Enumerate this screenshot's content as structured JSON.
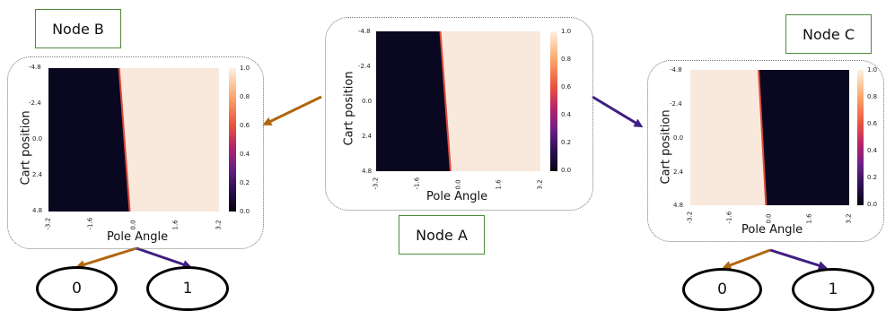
{
  "colors": {
    "dark": "#0a0820",
    "light": "#f8e9dc",
    "arrow_left": "#b0660f",
    "arrow_right": "#3f1f80",
    "box_border": "#4f8a3a"
  },
  "nodes": {
    "node_a": {
      "label": "Node A"
    },
    "node_b": {
      "label": "Node B"
    },
    "node_c": {
      "label": "Node C"
    }
  },
  "leaves": {
    "b_left": "0",
    "b_right": "1",
    "c_left": "0",
    "c_right": "1"
  },
  "chart_data": [
    {
      "type": "heatmap",
      "panel": "Node A",
      "xlabel": "Pole Angle",
      "ylabel": "Cart position",
      "x_ticks": [
        "-3.2",
        "-1.6",
        "0.0",
        "1.6",
        "3.2"
      ],
      "y_ticks": [
        "-4.8",
        "-2.4",
        "0.0",
        "2.4",
        "4.8"
      ],
      "colorbar_ticks": [
        "1.0",
        "0.8",
        "0.6",
        "0.4",
        "0.2",
        "0.0"
      ],
      "value_range": [
        0,
        1
      ],
      "boundary_pole_angle_at_cart_min": -0.7,
      "boundary_pole_angle_at_cart_max": -0.3,
      "left_value": 0,
      "right_value": 1
    },
    {
      "type": "heatmap",
      "panel": "Node B",
      "xlabel": "Pole Angle",
      "ylabel": "Cart position",
      "x_ticks": [
        "-3.2",
        "-1.6",
        "0.0",
        "1.6",
        "3.2"
      ],
      "y_ticks": [
        "-4.8",
        "-2.4",
        "0.0",
        "2.4",
        "4.8"
      ],
      "colorbar_ticks": [
        "1.0",
        "0.8",
        "0.6",
        "0.4",
        "0.2",
        "0.0"
      ],
      "value_range": [
        0,
        1
      ],
      "boundary_pole_angle_at_cart_min": -0.55,
      "boundary_pole_angle_at_cart_max": -0.15,
      "left_value": 0,
      "right_value": 1
    },
    {
      "type": "heatmap",
      "panel": "Node C",
      "xlabel": "Pole Angle",
      "ylabel": "Cart position",
      "x_ticks": [
        "-3.2",
        "-1.6",
        "0.0",
        "1.6",
        "3.2"
      ],
      "y_ticks": [
        "-4.8",
        "-2.4",
        "0.0",
        "2.4",
        "4.8"
      ],
      "colorbar_ticks": [
        "1.0",
        "0.8",
        "0.6",
        "0.4",
        "0.2",
        "0.0"
      ],
      "value_range": [
        0,
        1
      ],
      "boundary_pole_angle_at_cart_min": -0.45,
      "boundary_pole_angle_at_cart_max": -0.15,
      "left_value": 1,
      "right_value": 0
    }
  ]
}
